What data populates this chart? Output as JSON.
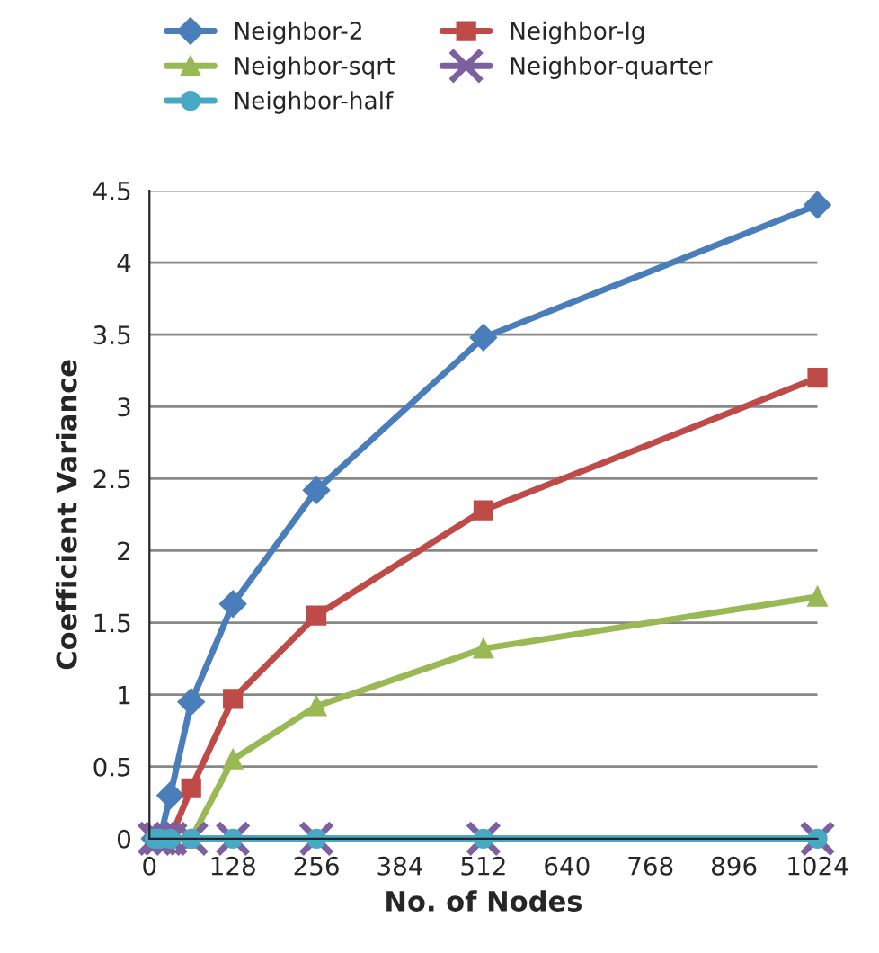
{
  "chart_data": {
    "type": "line",
    "xlabel": "No. of Nodes",
    "ylabel": "Coefficient Variance",
    "x": [
      8,
      16,
      32,
      64,
      128,
      256,
      512,
      1024
    ],
    "series": [
      {
        "name": "Neighbor-2",
        "color": "#4a7ebb",
        "marker": "diamond",
        "values": [
          0,
          0,
          0.3,
          0.95,
          1.63,
          2.42,
          3.48,
          4.4
        ]
      },
      {
        "name": "Neighbor-lg",
        "color": "#be4b48",
        "marker": "square",
        "values": [
          0,
          0,
          0,
          0.35,
          0.97,
          1.55,
          2.28,
          3.2
        ]
      },
      {
        "name": "Neighbor-sqrt",
        "color": "#98b954",
        "marker": "triangle",
        "values": [
          null,
          null,
          0,
          0,
          0.55,
          0.92,
          1.32,
          1.68
        ]
      },
      {
        "name": "Neighbor-quarter",
        "color": "#7d60a0",
        "marker": "cross",
        "values": [
          0,
          0,
          0,
          0,
          0,
          0,
          0,
          0
        ]
      },
      {
        "name": "Neighbor-half",
        "color": "#46aac5",
        "marker": "circle",
        "values": [
          0,
          0,
          0,
          0,
          0,
          0,
          0,
          0
        ]
      }
    ],
    "xlim": [
      0,
      1024
    ],
    "xticks": [
      0,
      128,
      256,
      384,
      512,
      640,
      768,
      896,
      1024
    ],
    "ylim": [
      0,
      4.5
    ],
    "yticks": [
      0,
      0.5,
      1,
      1.5,
      2,
      2.5,
      3,
      3.5,
      4,
      4.5
    ],
    "grid": "y",
    "legend": "top"
  }
}
